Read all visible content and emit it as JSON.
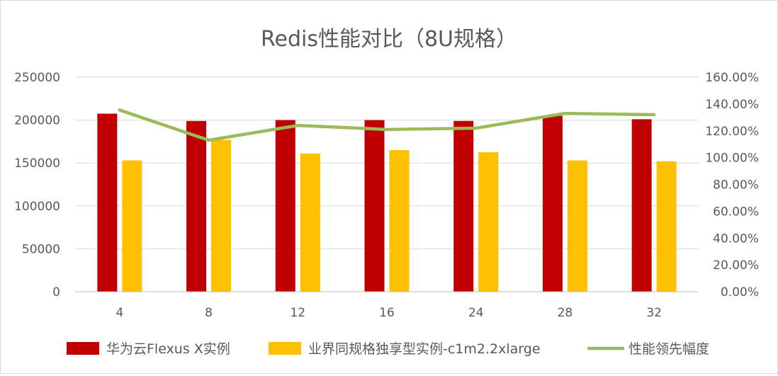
{
  "chart_data": {
    "type": "bar",
    "title": "Redis性能对比（8U规格）",
    "categories": [
      "4",
      "8",
      "12",
      "16",
      "24",
      "28",
      "32"
    ],
    "series": [
      {
        "name": "华为云Flexus X实例",
        "type": "bar",
        "axis": "left",
        "color": "#c00000",
        "values": [
          207500,
          199000,
          200000,
          200000,
          199000,
          205000,
          201000
        ]
      },
      {
        "name": "业界同规格独享型实例-c1m2.2xlarge",
        "type": "bar",
        "axis": "left",
        "color": "#ffc000",
        "values": [
          153000,
          177000,
          161000,
          165000,
          162500,
          153000,
          152000
        ]
      },
      {
        "name": "性能领先幅度",
        "type": "line",
        "axis": "right",
        "color": "#9bbb59",
        "values": [
          1.355,
          1.13,
          1.24,
          1.21,
          1.22,
          1.33,
          1.32
        ]
      }
    ],
    "ylim": [
      0,
      250000
    ],
    "yticks": [
      "0",
      "50000",
      "100000",
      "150000",
      "200000",
      "250000"
    ],
    "y2lim": [
      0,
      1.6
    ],
    "y2ticks": [
      "0.00%",
      "20.00%",
      "40.00%",
      "60.00%",
      "80.00%",
      "100.00%",
      "120.00%",
      "140.00%",
      "160.00%"
    ],
    "grid": true,
    "legend_position": "bottom"
  }
}
